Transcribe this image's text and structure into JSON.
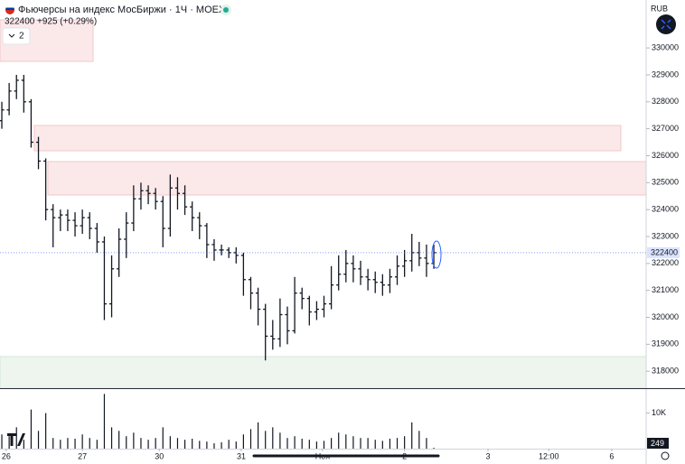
{
  "chart_data": {
    "type": "ohlc",
    "title": "Фьючерсы на индекс МосБиржи · 1Ч · MOEX",
    "change": "+925 (+0.29%)",
    "currency": "RUB",
    "collapse_count": "2",
    "color": "#131722",
    "open": [
      327300,
      327700,
      328400,
      328800,
      328000,
      326500,
      325800,
      324000,
      323700,
      323800,
      323600,
      323400,
      323700,
      323300,
      322800,
      320500,
      321800,
      322900,
      323500,
      324400,
      324700,
      324600,
      324300,
      323300,
      324800,
      324600,
      324100,
      323700,
      323400,
      322700,
      322500,
      322500,
      322400,
      322300,
      321400,
      320900,
      320300,
      319300,
      319200,
      320100,
      319500,
      320900,
      320700,
      320200,
      320300,
      320500,
      321200,
      321600,
      322000,
      321800,
      321500,
      321400,
      321300,
      321200,
      321500,
      321900,
      322100,
      322400,
      322200,
      322000
    ],
    "high": [
      328000,
      328700,
      329000,
      329000,
      328100,
      326700,
      325900,
      324200,
      324000,
      324000,
      323900,
      324000,
      323900,
      323500,
      323000,
      322300,
      323300,
      323900,
      324900,
      325000,
      324900,
      324800,
      324500,
      325300,
      325200,
      324900,
      324300,
      323900,
      323500,
      322900,
      322700,
      322600,
      322600,
      322400,
      321500,
      321100,
      320500,
      319900,
      320700,
      320400,
      321500,
      321100,
      320800,
      320600,
      320800,
      321900,
      322300,
      322500,
      322300,
      322100,
      321800,
      321700,
      321600,
      321800,
      322300,
      322500,
      323100,
      322800,
      322700,
      322700
    ],
    "low": [
      327000,
      327500,
      328100,
      327600,
      326300,
      325500,
      323600,
      322600,
      323200,
      323200,
      323000,
      323100,
      322900,
      322400,
      319900,
      320000,
      321500,
      322200,
      323200,
      324000,
      324200,
      324000,
      322600,
      323000,
      324000,
      323800,
      323200,
      322900,
      322200,
      322100,
      322300,
      322200,
      322000,
      320800,
      320300,
      319700,
      318400,
      318800,
      318900,
      319000,
      319400,
      320300,
      319700,
      319900,
      320000,
      320300,
      321000,
      321300,
      321300,
      321200,
      321000,
      320900,
      320800,
      320900,
      321200,
      321500,
      321700,
      321900,
      321500,
      321800
    ],
    "close": [
      327700,
      328400,
      328800,
      328000,
      326500,
      325800,
      324000,
      323700,
      323800,
      323600,
      323400,
      323700,
      323300,
      322800,
      320500,
      321800,
      322900,
      323500,
      324400,
      324700,
      324600,
      324300,
      323300,
      324800,
      324600,
      324100,
      323700,
      323400,
      322700,
      322500,
      322500,
      322400,
      322300,
      321400,
      320900,
      320300,
      319300,
      319200,
      320100,
      319500,
      320900,
      320700,
      320200,
      320300,
      320500,
      321200,
      321600,
      322000,
      321800,
      321500,
      321400,
      321300,
      321200,
      321500,
      321900,
      322100,
      322400,
      322200,
      322000,
      322400
    ],
    "ylim": [
      317370,
      331780
    ],
    "yticks": [
      318000,
      319000,
      320000,
      321000,
      322000,
      323000,
      324000,
      325000,
      326000,
      327000,
      328000,
      329000,
      330000
    ],
    "xlim": [
      -0.25,
      88
    ],
    "xticks": [
      {
        "value": 0.6,
        "label": "26"
      },
      {
        "value": 11,
        "label": "27"
      },
      {
        "value": 21.5,
        "label": "30"
      },
      {
        "value": 32.7,
        "label": "31"
      },
      {
        "value": 43.8,
        "label": "Ноя"
      },
      {
        "value": 55,
        "label": "2"
      },
      {
        "value": 66.4,
        "label": "3"
      },
      {
        "value": 74.7,
        "label": "12:00"
      },
      {
        "value": 83.3,
        "label": "6"
      }
    ],
    "volume": {
      "type": "bar",
      "color": "#131722",
      "values": [
        4000,
        3500,
        6000,
        2500,
        11000,
        5000,
        10000,
        3000,
        2500,
        3000,
        2800,
        4000,
        3000,
        2500,
        15400,
        6000,
        5000,
        3500,
        4500,
        3000,
        2500,
        3000,
        6000,
        3500,
        3000,
        2500,
        2800,
        2200,
        2000,
        1500,
        1800,
        2500,
        2000,
        4000,
        5500,
        7400,
        5000,
        6000,
        4500,
        3000,
        3500,
        2800,
        2500,
        2000,
        2200,
        3000,
        4500,
        4000,
        3500,
        3000,
        3000,
        2500,
        2200,
        2800,
        3000,
        3500,
        7400,
        5000,
        3000,
        249
      ],
      "ylim": [
        0,
        16000
      ],
      "yticks": [
        {
          "value": 10000,
          "label": "10K"
        }
      ]
    }
  }
}
